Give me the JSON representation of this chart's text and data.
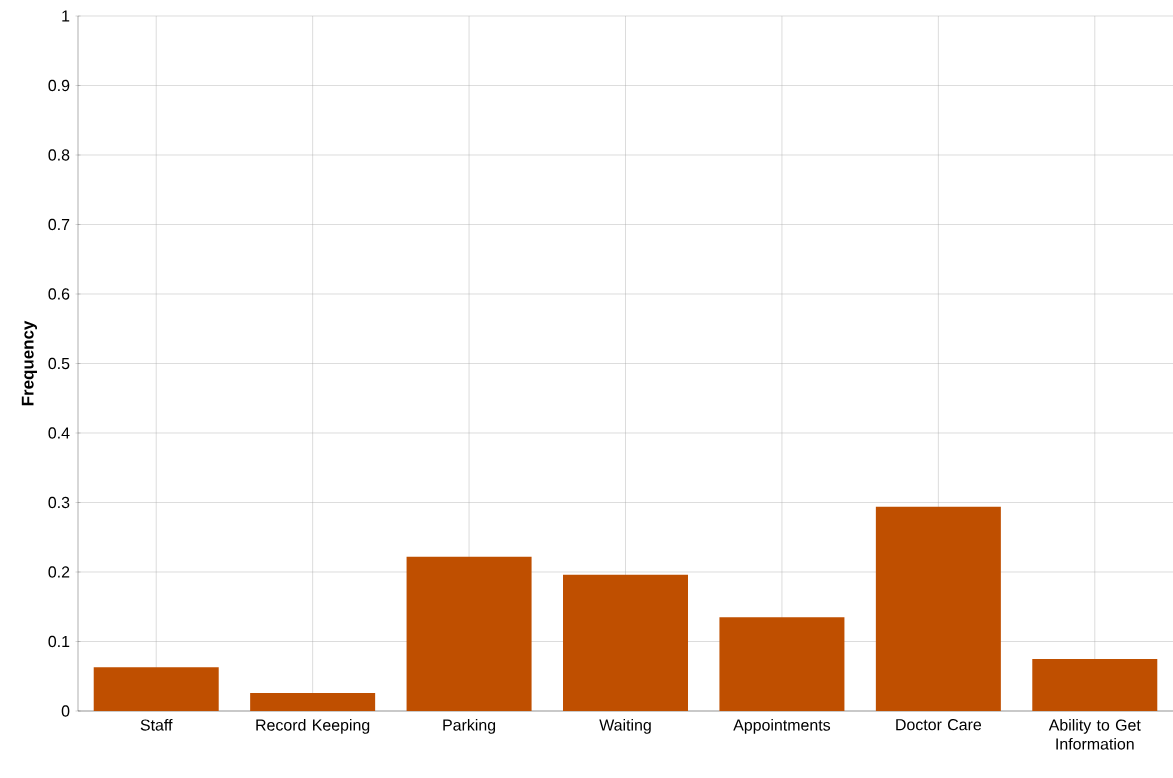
{
  "chart_data": {
    "type": "bar",
    "ylabel": "Frequency",
    "categories": [
      "Staff",
      "Record Keeping",
      "Parking",
      "Waiting",
      "Appointments",
      "Doctor Care",
      "Ability to Get Information"
    ],
    "values": [
      0.063,
      0.026,
      0.222,
      0.196,
      0.135,
      0.294,
      0.075
    ],
    "color": "#bf4f00",
    "ylim": [
      0,
      1
    ],
    "yticks": [
      0,
      0.1,
      0.2,
      0.3,
      0.4,
      0.5,
      0.6,
      0.7,
      0.8,
      0.9,
      1
    ],
    "grid": true
  }
}
